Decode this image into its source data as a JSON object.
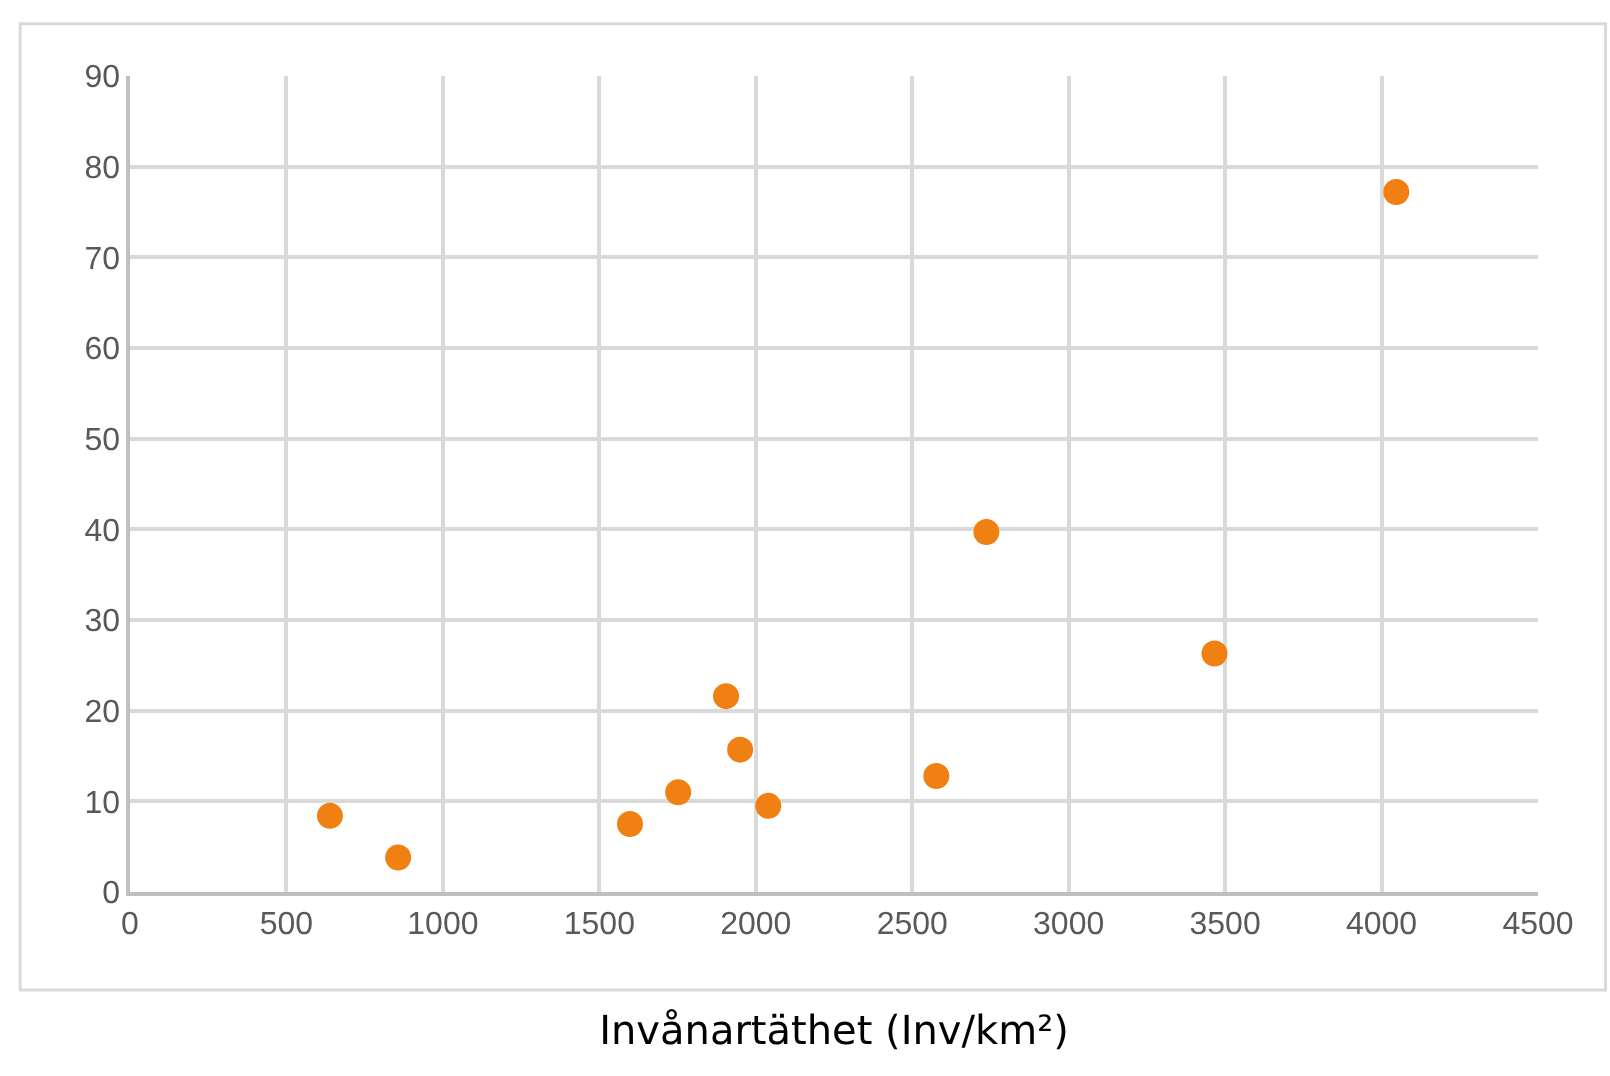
{
  "chart_data": {
    "type": "scatter",
    "xlabel": "Invånartäthet (Inv/km²)",
    "x": [
      639,
      857,
      1598,
      1752,
      1905,
      1950,
      2040,
      2577,
      2737,
      3466,
      4047
    ],
    "values": [
      8.4,
      3.8,
      7.5,
      11,
      21.6,
      15.7,
      9.5,
      12.8,
      39.7,
      26.3,
      77.2
    ],
    "color": "#f08012",
    "marker": "circle",
    "xlim": [
      0,
      4500
    ],
    "xticks": [
      0,
      500,
      1000,
      1500,
      2000,
      2500,
      3000,
      3500,
      4000,
      4500
    ],
    "ylim": [
      0,
      90
    ],
    "yticks": [
      0,
      10,
      20,
      30,
      40,
      50,
      60,
      70,
      80,
      90
    ],
    "grid": true
  }
}
